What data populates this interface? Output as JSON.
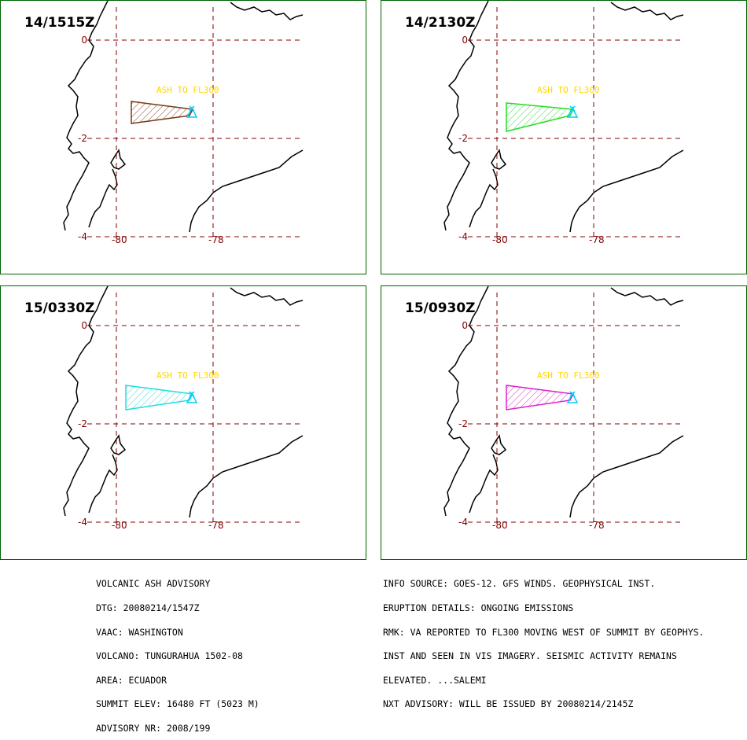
{
  "panels": [
    {
      "time": "14/1515Z",
      "color": "#7a3a1a",
      "label": "ASH TO FL300"
    },
    {
      "time": "14/2130Z",
      "color": "#22dd22",
      "label": "ASH TO FL300"
    },
    {
      "time": "15/0330Z",
      "color": "#22dddd",
      "label": "ASH TO FL300"
    },
    {
      "time": "15/0930Z",
      "color": "#dd22cc",
      "label": "ASH TO FL300"
    }
  ],
  "axes": {
    "lat_labels": [
      "0",
      "-2",
      "-4"
    ],
    "lon_labels": [
      "-80",
      "-78"
    ]
  },
  "colors": {
    "frame": "#006400",
    "grid": "#800000",
    "label": "#ffd700",
    "volcano": "#00ccff",
    "coast": "#000000"
  },
  "advisory_left": [
    "VOLCANIC ASH ADVISORY",
    "DTG: 20080214/1547Z",
    "VAAC: WASHINGTON",
    "VOLCANO: TUNGURAHUA 1502-08",
    "AREA: ECUADOR",
    "SUMMIT ELEV: 16480 FT (5023 M)",
    "ADVISORY NR: 2008/199"
  ],
  "advisory_right": [
    "INFO SOURCE: GOES-12. GFS WINDS. GEOPHYSICAL INST.",
    "ERUPTION DETAILS: ONGOING EMISSIONS",
    "RMK: VA REPORTED TO FL300 MOVING WEST OF SUMMIT BY GEOPHYS.",
    "INST AND SEEN IN VIS IMAGERY. SEISMIC ACTIVITY REMAINS",
    "ELEVATED. ...SALEMI",
    "NXT ADVISORY: WILL BE ISSUED BY 20080214/2145Z"
  ]
}
